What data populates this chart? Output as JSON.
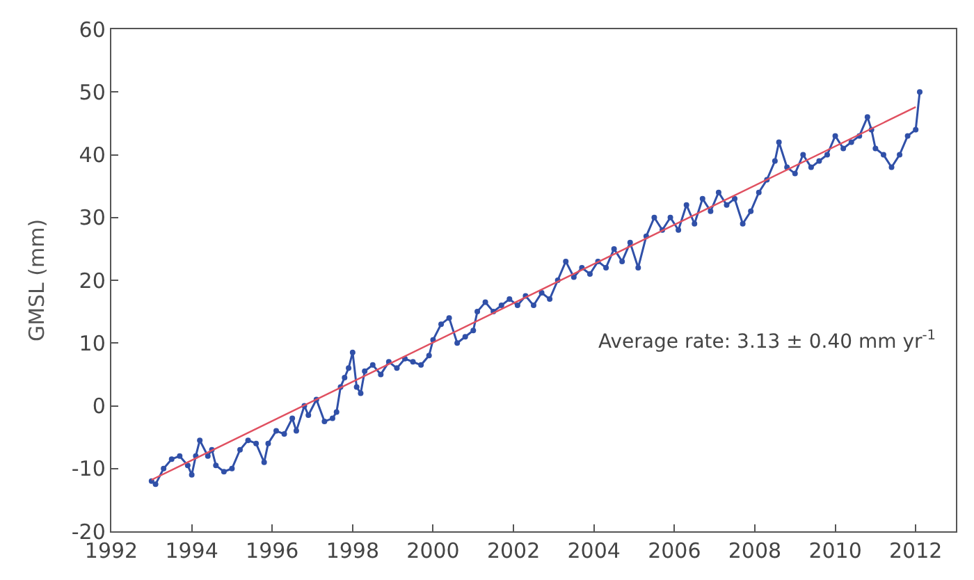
{
  "chart_data": {
    "type": "line",
    "ylabel": "GMSL (mm)",
    "xlim": [
      1992,
      2013
    ],
    "xticks": [
      1992,
      1994,
      1996,
      1998,
      2000,
      2002,
      2004,
      2006,
      2008,
      2010,
      2012
    ],
    "ylim": [
      -20,
      60
    ],
    "yticks": [
      -20,
      -10,
      0,
      10,
      20,
      30,
      40,
      50,
      60
    ],
    "marker": "circle",
    "line_style": "solid",
    "annotations": [
      "Average rate: 3.13 ± 0.40 mm yr$^{-1}$"
    ],
    "series": [
      {
        "color": "#3050a8",
        "x": [
          1993.0,
          1993.1,
          1993.3,
          1993.5,
          1993.7,
          1993.9,
          1994.0,
          1994.1,
          1994.2,
          1994.4,
          1994.5,
          1994.6,
          1994.8,
          1995.0,
          1995.2,
          1995.4,
          1995.6,
          1995.8,
          1995.9,
          1996.1,
          1996.3,
          1996.5,
          1996.6,
          1996.8,
          1996.9,
          1997.1,
          1997.3,
          1997.5,
          1997.6,
          1997.7,
          1997.8,
          1997.9,
          1998.0,
          1998.1,
          1998.2,
          1998.3,
          1998.5,
          1998.7,
          1998.9,
          1999.1,
          1999.3,
          1999.5,
          1999.7,
          1999.9,
          2000.0,
          2000.2,
          2000.4,
          2000.6,
          2000.8,
          2001.0,
          2001.1,
          2001.3,
          2001.5,
          2001.7,
          2001.9,
          2002.1,
          2002.3,
          2002.5,
          2002.7,
          2002.9,
          2003.1,
          2003.3,
          2003.5,
          2003.7,
          2003.9,
          2004.1,
          2004.3,
          2004.5,
          2004.7,
          2004.9,
          2005.1,
          2005.3,
          2005.5,
          2005.7,
          2005.9,
          2006.1,
          2006.3,
          2006.5,
          2006.7,
          2006.9,
          2007.1,
          2007.3,
          2007.5,
          2007.7,
          2007.9,
          2008.1,
          2008.3,
          2008.5,
          2008.6,
          2008.8,
          2009.0,
          2009.2,
          2009.4,
          2009.6,
          2009.8,
          2010.0,
          2010.2,
          2010.4,
          2010.6,
          2010.8,
          2010.9,
          2011.0,
          2011.2,
          2011.4,
          2011.6,
          2011.8,
          2012.0,
          2012.1
        ],
        "values": [
          -12,
          -12.5,
          -10,
          -8.5,
          -8,
          -9.5,
          -11,
          -8,
          -5.5,
          -8,
          -7,
          -9.5,
          -10.5,
          -10,
          -7,
          -5.5,
          -6,
          -9,
          -6,
          -4,
          -4.5,
          -2,
          -4,
          0,
          -1.5,
          1,
          -2.5,
          -2,
          -1,
          3,
          4.5,
          6,
          8.5,
          3,
          2,
          5.5,
          6.5,
          5,
          7,
          6,
          7.5,
          7,
          6.5,
          8,
          10.5,
          13,
          14,
          10,
          11,
          12,
          15,
          16.5,
          15,
          16,
          17,
          16,
          17.5,
          16,
          18,
          17,
          20,
          23,
          20.5,
          22,
          21,
          23,
          22,
          25,
          23,
          26,
          22,
          27,
          30,
          28,
          30,
          28,
          32,
          29,
          33,
          31,
          34,
          32,
          33,
          29,
          31,
          34,
          36,
          39,
          42,
          38,
          37,
          40,
          38,
          39,
          40,
          43,
          41,
          42,
          43,
          46,
          44,
          41,
          40,
          38,
          40,
          43,
          44,
          50
        ]
      },
      {
        "color": "#e05060",
        "type": "line",
        "marker": "none",
        "x": [
          1993,
          2012
        ],
        "values": [
          -11.8,
          47.6
        ]
      }
    ]
  }
}
